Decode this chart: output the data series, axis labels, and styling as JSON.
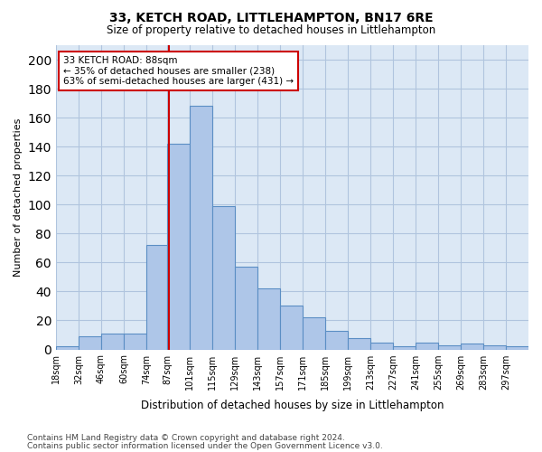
{
  "title": "33, KETCH ROAD, LITTLEHAMPTON, BN17 6RE",
  "subtitle": "Size of property relative to detached houses in Littlehampton",
  "xlabel": "Distribution of detached houses by size in Littlehampton",
  "ylabel": "Number of detached properties",
  "bar_values": [
    2,
    9,
    11,
    11,
    72,
    142,
    168,
    99,
    57,
    42,
    30,
    22,
    13,
    8,
    5,
    2,
    5,
    3,
    4,
    3,
    2
  ],
  "bin_labels": [
    "18sqm",
    "32sqm",
    "46sqm",
    "60sqm",
    "74sqm",
    "87sqm",
    "101sqm",
    "115sqm",
    "129sqm",
    "143sqm",
    "157sqm",
    "171sqm",
    "185sqm",
    "199sqm",
    "213sqm",
    "227sqm",
    "241sqm",
    "255sqm",
    "269sqm",
    "283sqm",
    "297sqm"
  ],
  "bin_edges": [
    18,
    32,
    46,
    60,
    74,
    87,
    101,
    115,
    129,
    143,
    157,
    171,
    185,
    199,
    213,
    227,
    241,
    255,
    269,
    283,
    297,
    311
  ],
  "bar_color": "#aec6e8",
  "bar_edge_color": "#5b8ec4",
  "vline_x": 88,
  "vline_color": "#cc0000",
  "annotation_text": "33 KETCH ROAD: 88sqm\n← 35% of detached houses are smaller (238)\n63% of semi-detached houses are larger (431) →",
  "annotation_box_color": "#ffffff",
  "annotation_box_edge": "#cc0000",
  "ylim": [
    0,
    210
  ],
  "yticks": [
    0,
    20,
    40,
    60,
    80,
    100,
    120,
    140,
    160,
    180,
    200
  ],
  "grid_color": "#b0c4de",
  "background_color": "#dce8f5",
  "footnote1": "Contains HM Land Registry data © Crown copyright and database right 2024.",
  "footnote2": "Contains public sector information licensed under the Open Government Licence v3.0."
}
